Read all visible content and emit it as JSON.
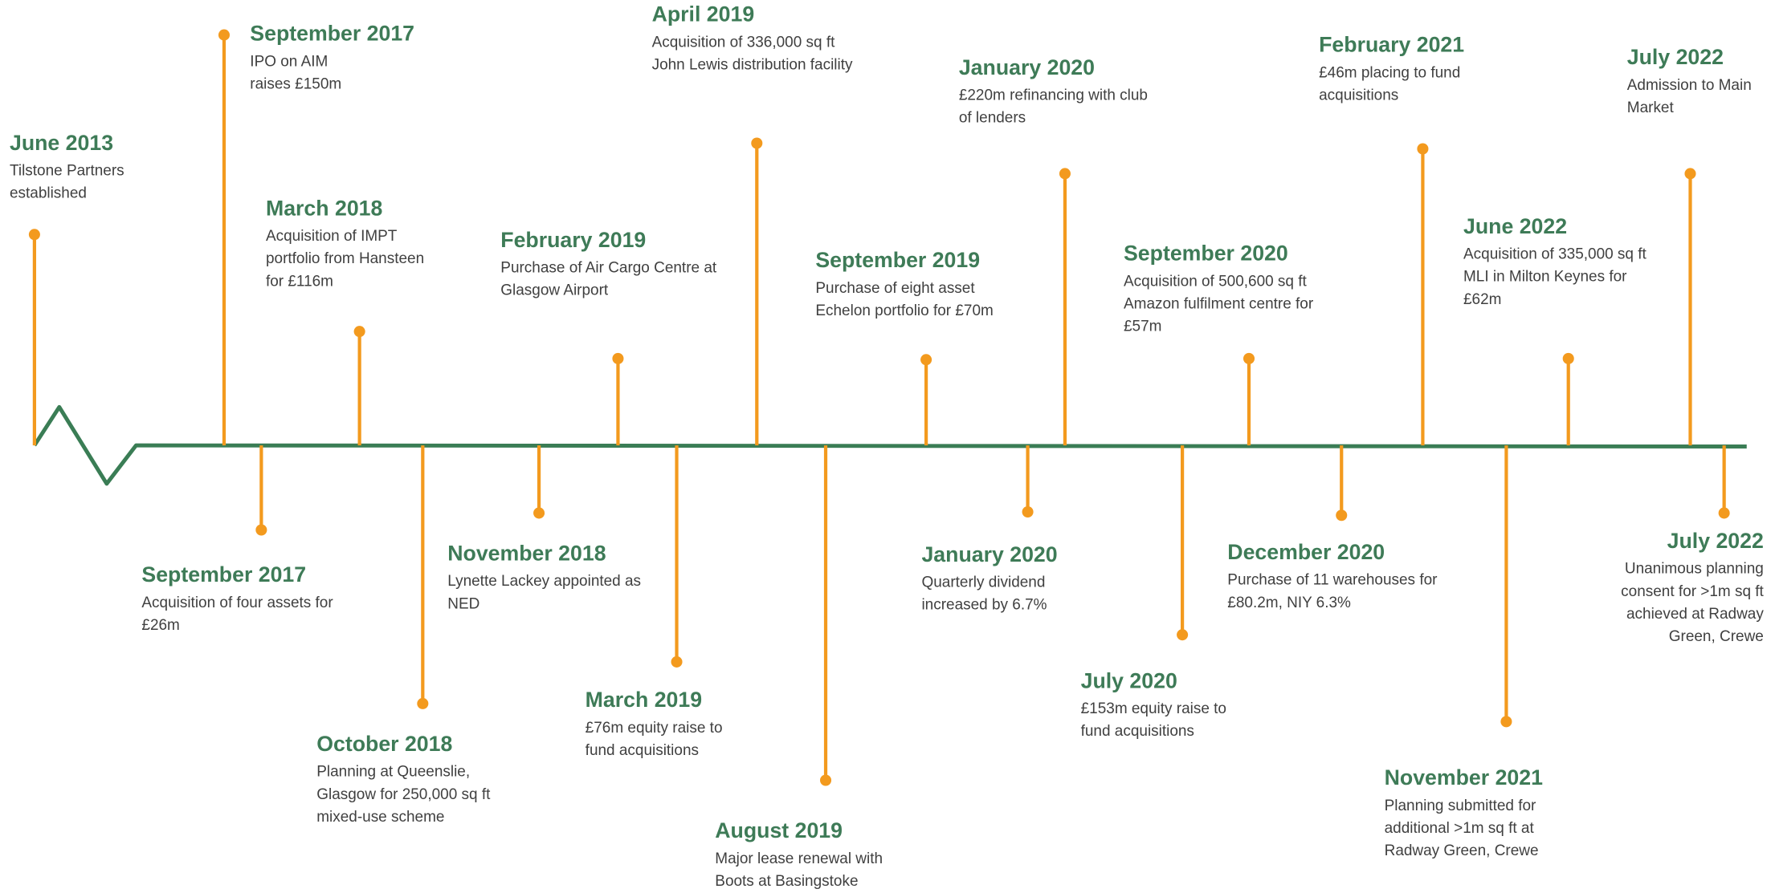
{
  "events": [
    {
      "date": "June 2013",
      "lines": [
        "Tilstone Partners",
        "established"
      ]
    },
    {
      "date": "September 2017",
      "lines": [
        "IPO on AIM",
        "raises £150m"
      ]
    },
    {
      "date": "September 2017",
      "lines": [
        "Acquisition of four assets for",
        "£26m"
      ]
    },
    {
      "date": "March 2018",
      "lines": [
        "Acquisition of IMPT",
        "portfolio from Hansteen",
        "for £116m"
      ]
    },
    {
      "date": "October 2018",
      "lines": [
        "Planning at Queenslie,",
        "Glasgow for 250,000 sq ft",
        "mixed-use scheme"
      ]
    },
    {
      "date": "November 2018",
      "lines": [
        "Lynette Lackey  appointed as",
        "NED"
      ]
    },
    {
      "date": "February 2019",
      "lines": [
        "Purchase of Air Cargo Centre at",
        "Glasgow Airport"
      ]
    },
    {
      "date": "March 2019",
      "lines": [
        "£76m equity raise to",
        "fund acquisitions"
      ]
    },
    {
      "date": "April 2019",
      "lines": [
        "Acquisition of 336,000 sq ft",
        "John Lewis distribution facility"
      ]
    },
    {
      "date": "August 2019",
      "lines": [
        "Major lease renewal with",
        "Boots at Basingstoke"
      ]
    },
    {
      "date": "September 2019",
      "lines": [
        "Purchase of eight asset",
        "Echelon portfolio for £70m"
      ]
    },
    {
      "date": "January 2020",
      "lines": [
        "Quarterly dividend",
        "increased by 6.7%"
      ]
    },
    {
      "date": "January 2020",
      "lines": [
        "£220m refinancing  with club",
        "of lenders"
      ]
    },
    {
      "date": "July 2020",
      "lines": [
        "£153m equity raise to",
        "fund acquisitions"
      ]
    },
    {
      "date": "September 2020",
      "lines": [
        "Acquisition of 500,600 sq ft",
        "Amazon fulfilment centre for",
        "£57m"
      ]
    },
    {
      "date": "December 2020",
      "lines": [
        "Purchase of 11 warehouses for",
        "£80.2m, NIY 6.3%"
      ]
    },
    {
      "date": "February 2021",
      "lines": [
        "£46m placing to fund",
        "acquisitions"
      ]
    },
    {
      "date": "November 2021",
      "lines": [
        "Planning submitted for",
        "additional >1m sq ft at",
        "Radway Green, Crewe"
      ]
    },
    {
      "date": "June 2022",
      "lines": [
        "Acquisition of 335,000 sq ft",
        "MLI in Milton Keynes for",
        "£62m"
      ]
    },
    {
      "date": "July 2022",
      "lines": [
        "Admission to Main",
        "Market"
      ]
    },
    {
      "date": "July 2022",
      "lines": [
        "Unanimous planning",
        "consent for >1m sq ft",
        "achieved at Radway",
        "Green, Crewe"
      ]
    }
  ]
}
